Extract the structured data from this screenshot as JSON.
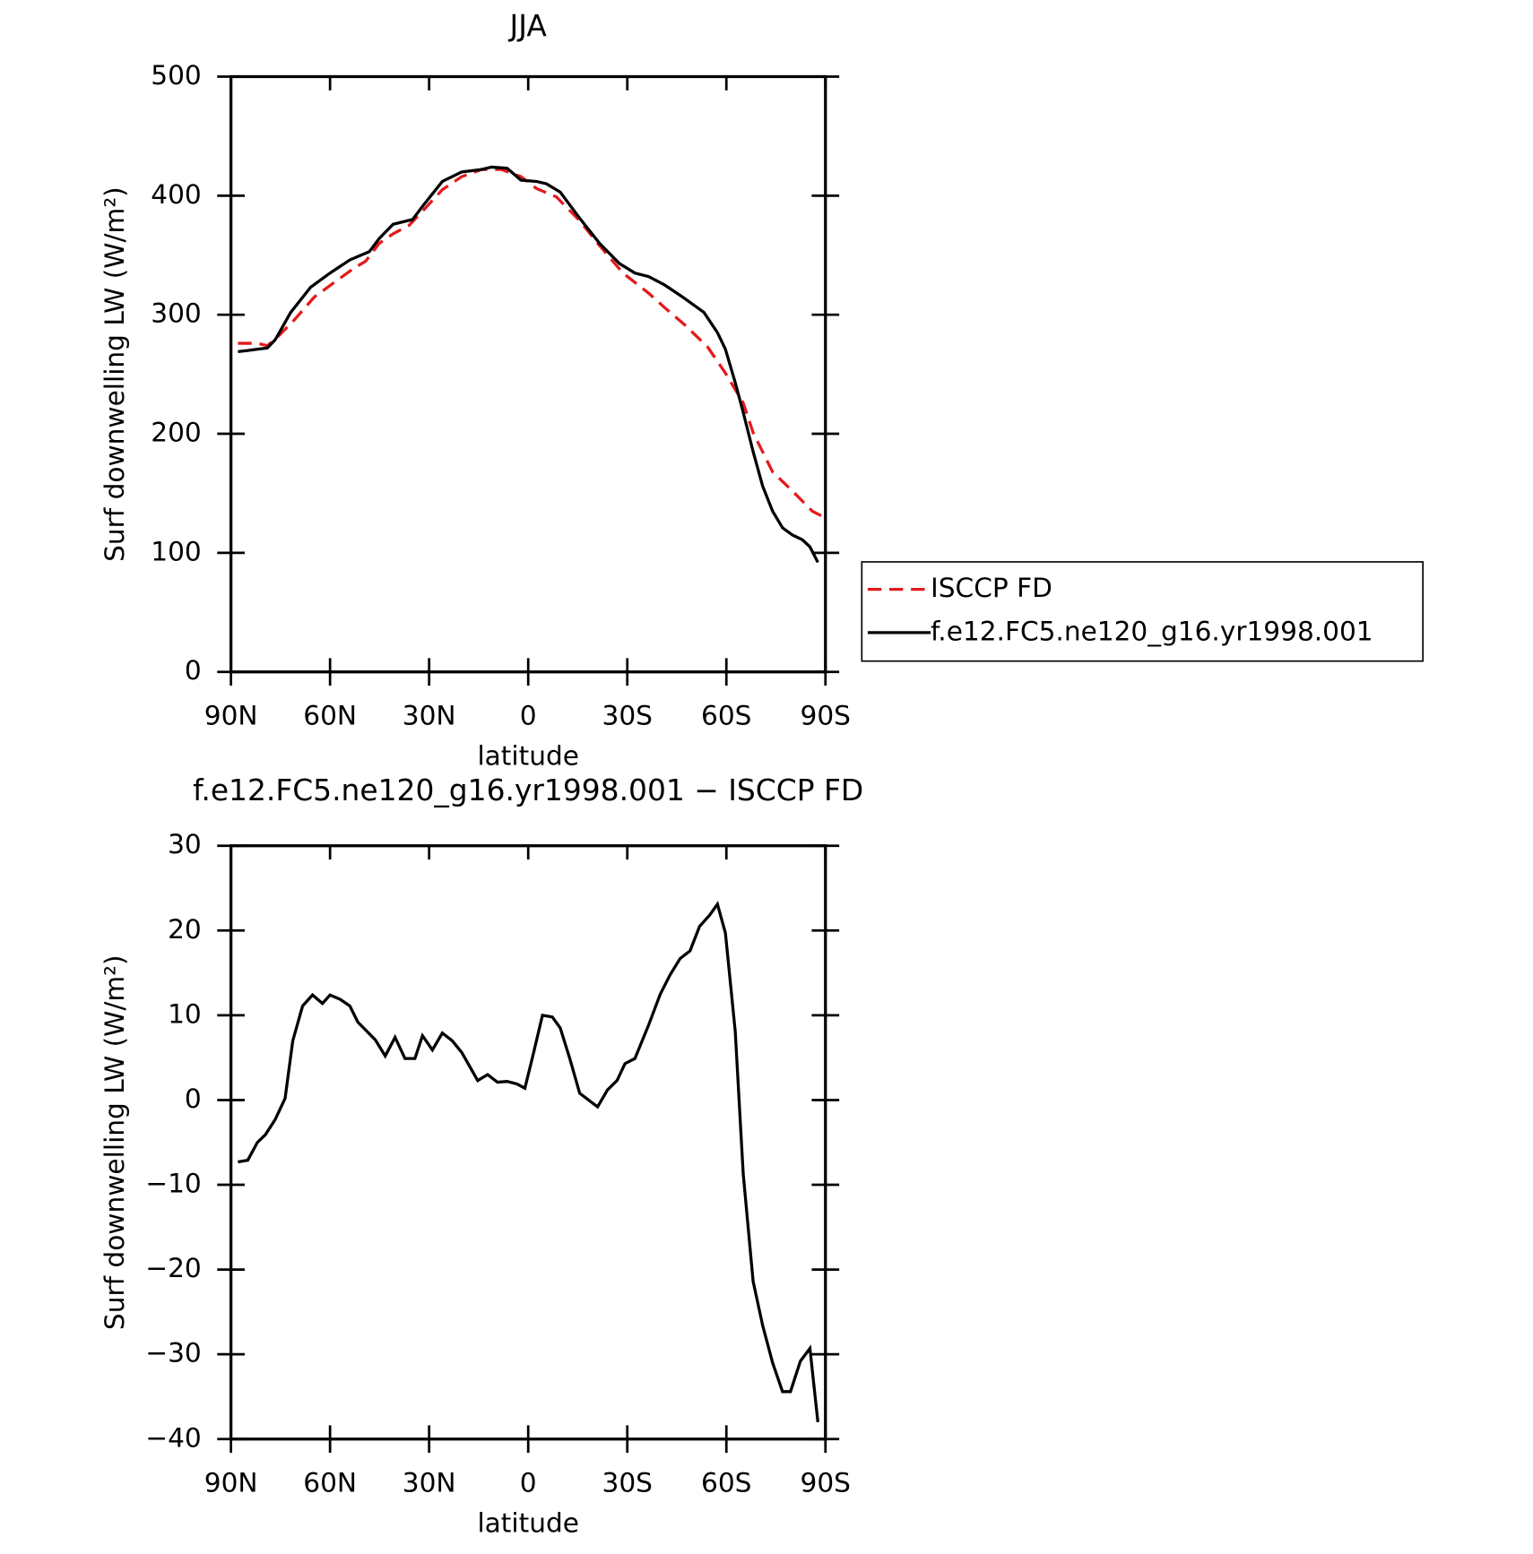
{
  "chart_data": [
    {
      "type": "line",
      "title": "JJA",
      "xlabel": "latitude",
      "ylabel": "Surf downwelling LW (W/m²)",
      "xlim": [
        90,
        -90
      ],
      "xticks": [
        {
          "value": 90,
          "label": "90N"
        },
        {
          "value": 60,
          "label": "60N"
        },
        {
          "value": 30,
          "label": "30N"
        },
        0,
        {
          "value": -30,
          "label": "30S"
        },
        {
          "value": -60,
          "label": "60S"
        },
        {
          "value": -90,
          "label": "90S"
        }
      ],
      "ylim": [
        0,
        500
      ],
      "yticks": [
        0,
        100,
        200,
        300,
        400,
        500
      ],
      "legend": "right",
      "series": [
        {
          "name": "ISCCP FD",
          "color": "#e41a1c",
          "dashed": true,
          "x": [
            87.9,
            82.0,
            79.0,
            76.0,
            70.7,
            64.7,
            58.8,
            52.8,
            49.2,
            45.1,
            40.9,
            36.1,
            32.0,
            26.0,
            20.1,
            14.1,
            8.2,
            2.2,
            -2.5,
            -8.5,
            -15.6,
            -21.6,
            -28.7,
            -36.5,
            -41.3,
            -47.2,
            -54.3,
            -59.7,
            -65.1,
            -68.1,
            -74.0,
            -80.0,
            -86.0,
            -88.8
          ],
          "values": [
            276,
            276,
            274,
            281,
            296,
            315,
            327,
            339,
            345,
            360,
            368,
            375,
            387,
            405,
            416,
            422,
            422,
            416,
            406,
            399,
            379,
            358,
            335,
            318,
            306,
            292,
            273,
            251,
            226,
            201,
            168,
            152,
            135,
            131
          ]
        },
        {
          "name": "f.e12.FC5.ne120_g16.yr1998.001",
          "color": "#000000",
          "dashed": false,
          "x": [
            87.9,
            84.9,
            82.0,
            79.0,
            76.6,
            71.9,
            65.9,
            60.0,
            54.0,
            48.1,
            45.1,
            40.9,
            35.0,
            32.0,
            26.0,
            20.1,
            14.1,
            11.1,
            6.4,
            2.2,
            -2.5,
            -5.5,
            -9.7,
            -15.6,
            -21.6,
            -27.6,
            -32.3,
            -36.5,
            -41.3,
            -47.2,
            -53.2,
            -57.3,
            -59.7,
            -62.7,
            -65.1,
            -68.1,
            -71.0,
            -74.0,
            -77.0,
            -80.0,
            -83.0,
            -85.3,
            -87.7
          ],
          "values": [
            269,
            270,
            271,
            272,
            279,
            302,
            323,
            335,
            346,
            353,
            364,
            376,
            380,
            391,
            412,
            420,
            422,
            424,
            423,
            413,
            412,
            410,
            403,
            381,
            360,
            343,
            335,
            332,
            325,
            314,
            302,
            285,
            271,
            243,
            218,
            185,
            156,
            135,
            121,
            115,
            111,
            105,
            92
          ]
        }
      ]
    },
    {
      "type": "line",
      "title": "f.e12.FC5.ne120_g16.yr1998.001 − ISCCP FD",
      "xlabel": "latitude",
      "ylabel": "Surf downwelling LW (W/m²)",
      "xlim": [
        90,
        -90
      ],
      "xticks": [
        {
          "value": 90,
          "label": "90N"
        },
        {
          "value": 60,
          "label": "60N"
        },
        {
          "value": 30,
          "label": "30N"
        },
        0,
        {
          "value": -30,
          "label": "30S"
        },
        {
          "value": -60,
          "label": "60S"
        },
        {
          "value": -90,
          "label": "90S"
        }
      ],
      "ylim": [
        -40,
        30
      ],
      "yticks": [
        {
          "value": -40,
          "label": "−40"
        },
        {
          "value": -30,
          "label": "−30"
        },
        {
          "value": -20,
          "label": "−20"
        },
        {
          "value": -10,
          "label": "−10"
        },
        0,
        10,
        20,
        30
      ],
      "series": [
        {
          "color": "#000000",
          "dashed": false,
          "x": [
            87.9,
            84.9,
            82.0,
            79.6,
            76.6,
            73.6,
            71.3,
            68.3,
            65.3,
            62.3,
            60.0,
            57.0,
            54.0,
            51.6,
            46.3,
            43.3,
            40.3,
            37.3,
            34.3,
            32.0,
            29.0,
            26.0,
            23.0,
            20.1,
            15.3,
            12.3,
            9.3,
            6.4,
            3.4,
            1.0,
            -1.4,
            -4.3,
            -7.3,
            -9.7,
            -12.6,
            -15.6,
            -21.0,
            -24.0,
            -26.9,
            -29.3,
            -32.3,
            -36.5,
            -40.0,
            -43.0,
            -46.0,
            -49.0,
            -51.9,
            -54.9,
            -57.3,
            -59.7,
            -62.7,
            -65.1,
            -68.1,
            -71.0,
            -74.0,
            -77.0,
            -79.4,
            -82.4,
            -85.3,
            -87.7
          ],
          "values": [
            -7.3,
            -7.1,
            -5.0,
            -4.1,
            -2.3,
            0.2,
            7.0,
            11.1,
            12.4,
            11.4,
            12.4,
            11.9,
            11.1,
            9.2,
            7.1,
            5.2,
            7.4,
            4.9,
            4.9,
            7.6,
            5.9,
            7.9,
            7.0,
            5.6,
            2.3,
            3.0,
            2.1,
            2.2,
            1.9,
            1.4,
            5.2,
            10.0,
            9.8,
            8.5,
            4.9,
            0.8,
            -0.8,
            1.2,
            2.3,
            4.3,
            4.9,
            8.9,
            12.5,
            14.8,
            16.7,
            17.6,
            20.5,
            21.8,
            23.1,
            19.7,
            8.1,
            -8.7,
            -21.4,
            -26.6,
            -31.0,
            -34.4,
            -34.4,
            -30.8,
            -29.3,
            -38.0
          ]
        }
      ]
    }
  ]
}
